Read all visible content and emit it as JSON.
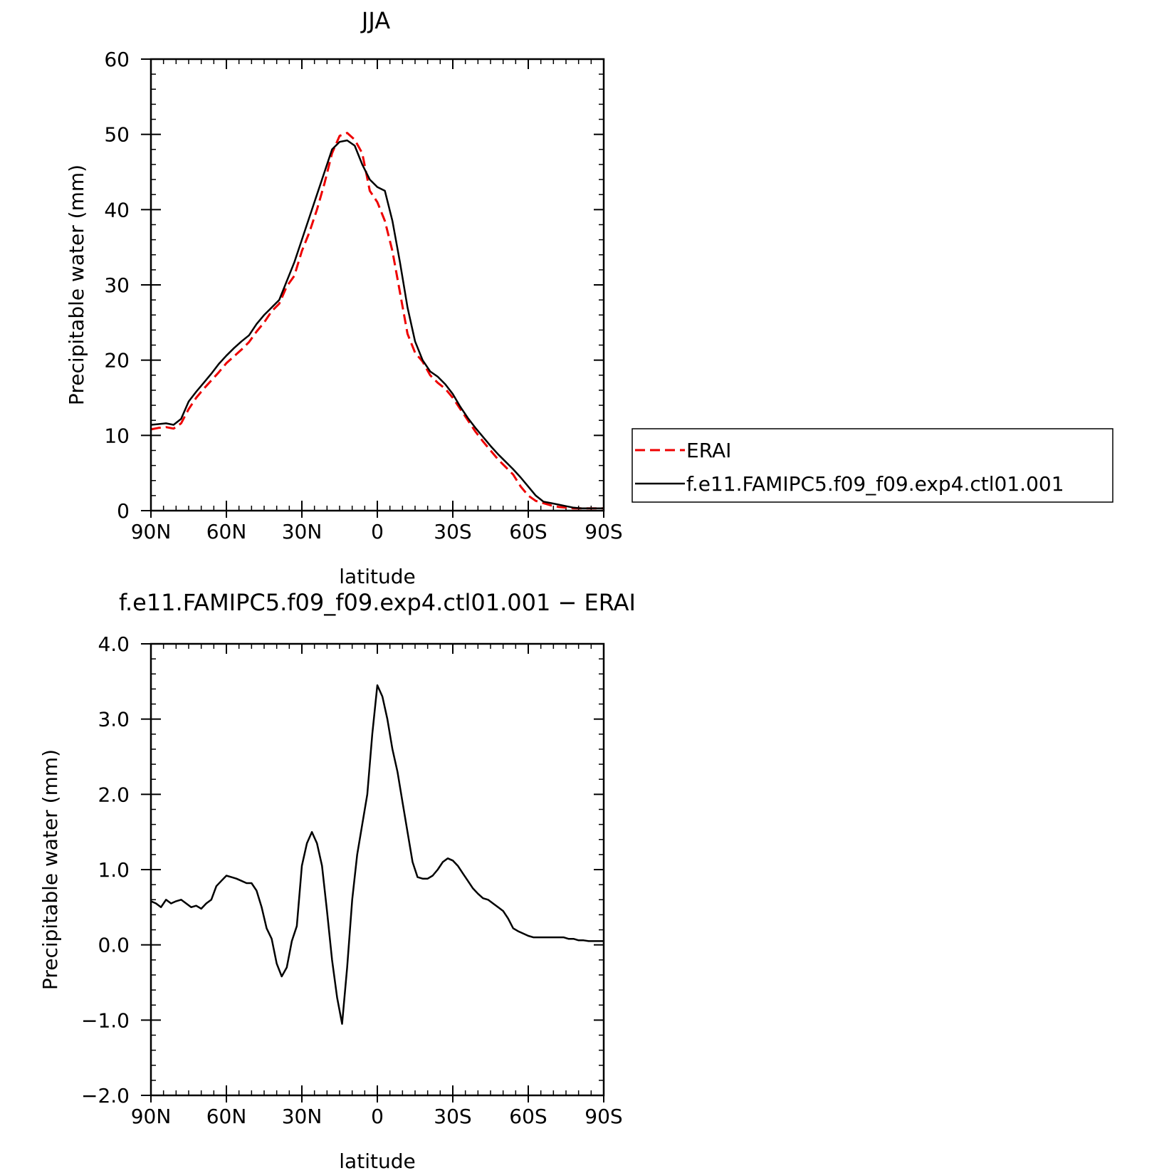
{
  "chart_data": [
    {
      "type": "line",
      "title": "JJA",
      "xlabel": "latitude",
      "ylabel": "Precipitable water (mm)",
      "x_ticks": [
        "90N",
        "60N",
        "30N",
        "0",
        "30S",
        "60S",
        "90S"
      ],
      "x_tick_values": [
        90,
        60,
        30,
        0,
        -30,
        -60,
        -90
      ],
      "y_ticks": [
        "0",
        "10",
        "20",
        "30",
        "40",
        "50",
        "60"
      ],
      "y_tick_values": [
        0,
        10,
        20,
        30,
        40,
        50,
        60
      ],
      "xlim": [
        90,
        -90
      ],
      "ylim": [
        0,
        60
      ],
      "legend_position": "right",
      "x": [
        90,
        87,
        84,
        81,
        78,
        75,
        72,
        69,
        66,
        63,
        60,
        57,
        54,
        51,
        48,
        45,
        42,
        39,
        36,
        33,
        30,
        27,
        24,
        21,
        18,
        15,
        12,
        9,
        6,
        3,
        0,
        -3,
        -6,
        -9,
        -12,
        -15,
        -18,
        -21,
        -24,
        -27,
        -30,
        -33,
        -36,
        -39,
        -42,
        -45,
        -48,
        -51,
        -54,
        -57,
        -60,
        -63,
        -66,
        -69,
        -72,
        -75,
        -78,
        -81,
        -84,
        -87,
        -90
      ],
      "series": [
        {
          "name": "ERAI",
          "color": "#ee0000",
          "dash": "dashed",
          "values": [
            10.8,
            11.0,
            11.1,
            10.9,
            11.6,
            13.5,
            15.0,
            16.2,
            17.3,
            18.4,
            19.6,
            20.5,
            21.4,
            22.4,
            23.8,
            25.0,
            26.5,
            27.5,
            29.8,
            31.2,
            34.5,
            37.0,
            40.0,
            43.5,
            47.5,
            49.8,
            50.2,
            49.3,
            47.5,
            42.5,
            41.0,
            38.5,
            34.5,
            29.0,
            23.5,
            21.0,
            19.8,
            18.0,
            17.0,
            16.2,
            15.0,
            13.5,
            12.0,
            10.5,
            9.2,
            8.0,
            6.8,
            5.8,
            4.8,
            3.2,
            2.0,
            1.3,
            1.0,
            0.7,
            0.5,
            0.4,
            0.3,
            0.3,
            0.3,
            0.3,
            0.3
          ]
        },
        {
          "name": "f.e11.FAMIPC5.f09_f09.exp4.ctl01.001",
          "color": "#000000",
          "dash": "solid",
          "values": [
            11.4,
            11.5,
            11.6,
            11.4,
            12.2,
            14.5,
            15.8,
            17.0,
            18.2,
            19.5,
            20.6,
            21.6,
            22.5,
            23.3,
            24.8,
            26.0,
            27.0,
            28.0,
            30.5,
            33.0,
            36.0,
            39.0,
            42.0,
            45.0,
            48.0,
            49.0,
            49.2,
            48.5,
            46.0,
            44.0,
            43.0,
            42.5,
            38.5,
            33.0,
            27.0,
            22.5,
            20.0,
            18.5,
            17.8,
            16.8,
            15.5,
            13.8,
            12.3,
            11.0,
            9.8,
            8.6,
            7.5,
            6.5,
            5.5,
            4.4,
            3.2,
            2.0,
            1.2,
            1.0,
            0.8,
            0.6,
            0.4,
            0.3,
            0.3,
            0.3,
            0.3
          ]
        }
      ]
    },
    {
      "type": "line",
      "title": "f.e11.FAMIPC5.f09_f09.exp4.ctl01.001 − ERAI",
      "xlabel": "latitude",
      "ylabel": "Precipitable water (mm)",
      "x_ticks": [
        "90N",
        "60N",
        "30N",
        "0",
        "30S",
        "60S",
        "90S"
      ],
      "x_tick_values": [
        90,
        60,
        30,
        0,
        -30,
        -60,
        -90
      ],
      "y_ticks": [
        "4.0",
        "3.0",
        "2.0",
        "1.0",
        "0.0",
        "−1.0",
        "−2.0"
      ],
      "y_tick_values": [
        4,
        3,
        2,
        1,
        0,
        -1,
        -2
      ],
      "xlim": [
        90,
        -90
      ],
      "ylim": [
        -2,
        4
      ],
      "series": [
        {
          "color": "#000000",
          "dash": "solid",
          "x": [
            90,
            88,
            86,
            84,
            82,
            80,
            78,
            76,
            74,
            72,
            70,
            68,
            66,
            64,
            62,
            60,
            58,
            56,
            54,
            52,
            50,
            48,
            46,
            44,
            42,
            40,
            38,
            36,
            34,
            32,
            30,
            28,
            26,
            24,
            22,
            20,
            18,
            16,
            14,
            12,
            10,
            8,
            6,
            4,
            2,
            0,
            -2,
            -4,
            -6,
            -8,
            -10,
            -12,
            -14,
            -16,
            -18,
            -20,
            -22,
            -24,
            -26,
            -28,
            -30,
            -32,
            -34,
            -36,
            -38,
            -40,
            -42,
            -44,
            -46,
            -48,
            -50,
            -52,
            -54,
            -56,
            -58,
            -60,
            -62,
            -64,
            -66,
            -68,
            -70,
            -72,
            -74,
            -76,
            -78,
            -80,
            -82,
            -84,
            -86,
            -88,
            -90
          ],
          "values": [
            0.58,
            0.55,
            0.5,
            0.6,
            0.55,
            0.58,
            0.6,
            0.55,
            0.5,
            0.52,
            0.48,
            0.55,
            0.6,
            0.78,
            0.85,
            0.92,
            0.9,
            0.88,
            0.85,
            0.82,
            0.82,
            0.72,
            0.5,
            0.22,
            0.08,
            -0.25,
            -0.42,
            -0.3,
            0.05,
            0.25,
            1.05,
            1.35,
            1.5,
            1.35,
            1.05,
            0.45,
            -0.2,
            -0.7,
            -1.05,
            -0.3,
            0.6,
            1.2,
            1.6,
            2.0,
            2.8,
            3.45,
            3.3,
            3.0,
            2.6,
            2.3,
            1.9,
            1.5,
            1.1,
            0.9,
            0.88,
            0.88,
            0.92,
            1.0,
            1.1,
            1.15,
            1.12,
            1.05,
            0.95,
            0.85,
            0.75,
            0.68,
            0.62,
            0.6,
            0.55,
            0.5,
            0.45,
            0.35,
            0.22,
            0.18,
            0.15,
            0.12,
            0.1,
            0.1,
            0.1,
            0.1,
            0.1,
            0.1,
            0.1,
            0.08,
            0.08,
            0.06,
            0.06,
            0.05,
            0.05,
            0.05,
            0.05
          ]
        }
      ]
    }
  ]
}
